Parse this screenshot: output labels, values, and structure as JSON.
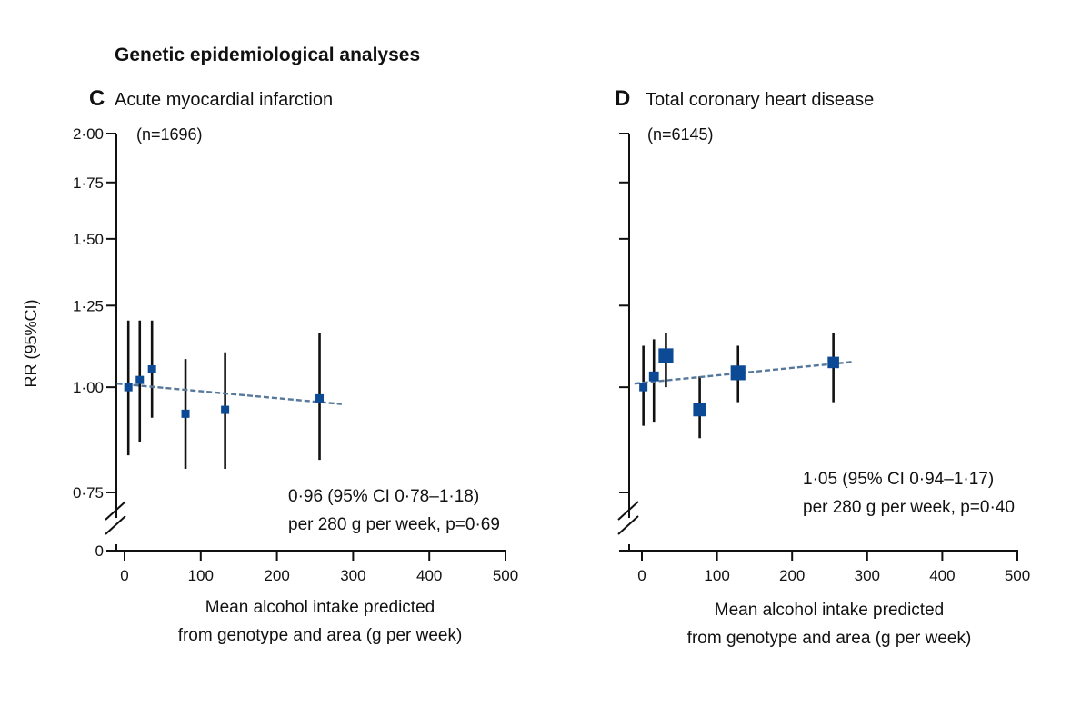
{
  "figure_title": "Genetic epidemiological analyses",
  "chart_data": [
    {
      "type": "scatter",
      "panel_letter": "C",
      "title": "Acute myocardial infarction",
      "n_label": "(n=1696)",
      "ylabel": "RR (95%CI)",
      "xlabel": [
        "Mean alcohol intake predicted",
        "from genotype and area (g per week)"
      ],
      "xlim": [
        -10,
        500
      ],
      "xticks": [
        0,
        100,
        200,
        300,
        400,
        500
      ],
      "xtick_labels": [
        "0",
        "100",
        "200",
        "300",
        "400",
        "500"
      ],
      "yticks": [
        0.75,
        1.0,
        1.25,
        1.5,
        1.75,
        2.0
      ],
      "ytick_labels": [
        "0·75",
        "1·00",
        "1·25",
        "1·50",
        "1·75",
        "2·00"
      ],
      "y_break_label": "0",
      "y_scale": "log",
      "points": [
        {
          "x": 5,
          "rr": 1.0,
          "lo": 0.83,
          "hi": 1.2,
          "weight": 1
        },
        {
          "x": 20,
          "rr": 1.02,
          "lo": 0.86,
          "hi": 1.2,
          "weight": 1
        },
        {
          "x": 36,
          "rr": 1.05,
          "lo": 0.92,
          "hi": 1.2,
          "weight": 1
        },
        {
          "x": 80,
          "rr": 0.93,
          "lo": 0.8,
          "hi": 1.08,
          "weight": 1
        },
        {
          "x": 132,
          "rr": 0.94,
          "lo": 0.8,
          "hi": 1.1,
          "weight": 1
        },
        {
          "x": 256,
          "rr": 0.97,
          "lo": 0.82,
          "hi": 1.16,
          "weight": 1
        }
      ],
      "fit_line": {
        "x": [
          -10,
          285
        ],
        "y": [
          1.01,
          0.955
        ]
      },
      "annotation": [
        "0·96 (95% CI 0·78–1·18)",
        "per 280 g per week, p=0·69"
      ],
      "marker_color": "#0d4a96",
      "line_color": "#56789a"
    },
    {
      "type": "scatter",
      "panel_letter": "D",
      "title": "Total coronary heart disease",
      "n_label": "(n=6145)",
      "ylabel": "",
      "xlabel": [
        "Mean alcohol intake predicted",
        "from genotype and area (g per week)"
      ],
      "xlim": [
        -10,
        500
      ],
      "xticks": [
        0,
        100,
        200,
        300,
        400,
        500
      ],
      "xtick_labels": [
        "0",
        "100",
        "200",
        "300",
        "400",
        "500"
      ],
      "yticks": [
        0.75,
        1.0,
        1.25,
        1.5,
        1.75,
        2.0
      ],
      "ytick_labels": [
        "",
        "",
        "",
        "",
        "",
        ""
      ],
      "y_break_label": "",
      "y_scale": "log",
      "points": [
        {
          "x": 2,
          "rr": 1.0,
          "lo": 0.9,
          "hi": 1.12,
          "weight": 1
        },
        {
          "x": 16,
          "rr": 1.03,
          "lo": 0.91,
          "hi": 1.14,
          "weight": 1.2
        },
        {
          "x": 32,
          "rr": 1.09,
          "lo": 1.0,
          "hi": 1.16,
          "weight": 1.8
        },
        {
          "x": 77,
          "rr": 0.94,
          "lo": 0.87,
          "hi": 1.03,
          "weight": 1.6
        },
        {
          "x": 128,
          "rr": 1.04,
          "lo": 0.96,
          "hi": 1.12,
          "weight": 1.8
        },
        {
          "x": 255,
          "rr": 1.07,
          "lo": 0.96,
          "hi": 1.16,
          "weight": 1.4
        }
      ],
      "fit_line": {
        "x": [
          -10,
          282
        ],
        "y": [
          1.01,
          1.072
        ]
      },
      "annotation": [
        "1·05 (95% CI 0·94–1·17)",
        "per 280 g per week, p=0·40"
      ],
      "marker_color": "#0d4a96",
      "line_color": "#56789a"
    }
  ]
}
